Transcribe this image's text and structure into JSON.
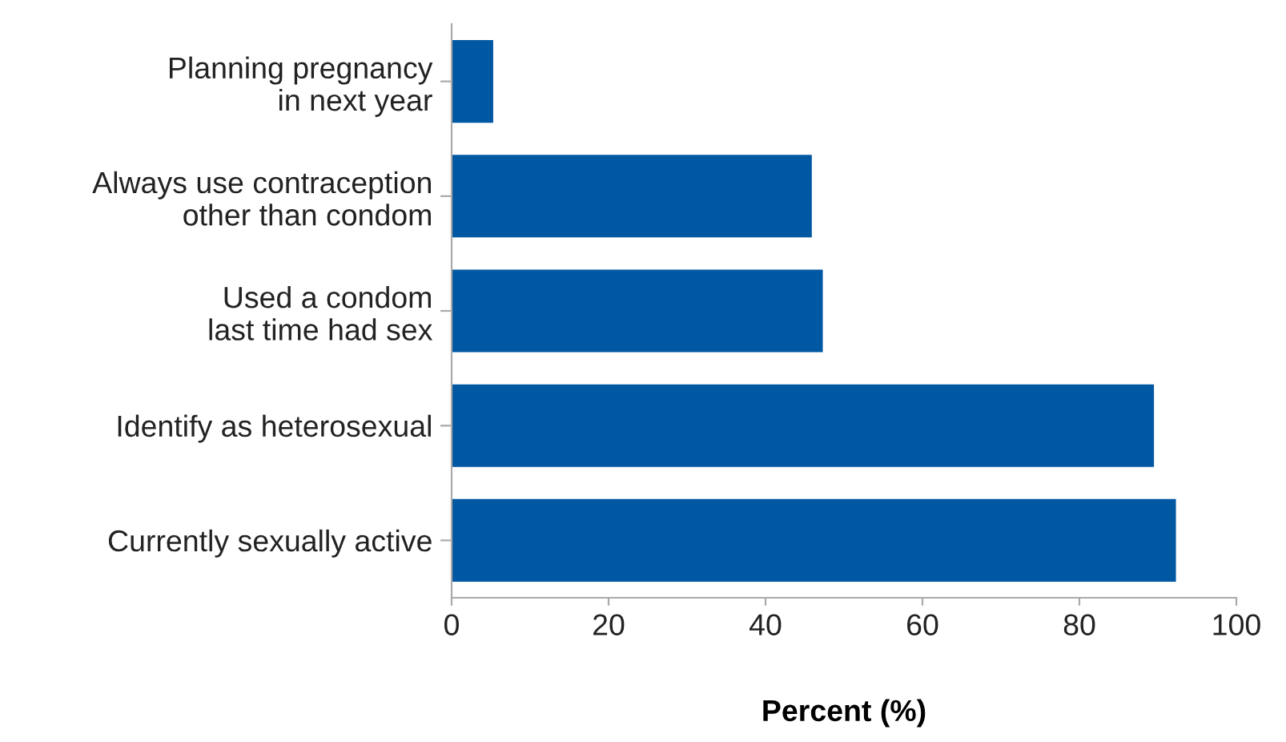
{
  "chart_data": {
    "type": "bar",
    "orientation": "horizontal",
    "xlabel": "Percent (%)",
    "categories": [
      "Planning pregnancy\nin next year",
      "Always use contraception\nother than condom",
      "Used a condom\nlast time had sex",
      "Identify as heterosexual",
      "Currently sexually active"
    ],
    "values": [
      5.3,
      45.9,
      47.3,
      89.5,
      92.3
    ],
    "color": "#0057a2",
    "xlim": [
      0,
      100
    ],
    "xticks": [
      0,
      20,
      40,
      60,
      80,
      100
    ],
    "grid": false,
    "legend": false
  }
}
